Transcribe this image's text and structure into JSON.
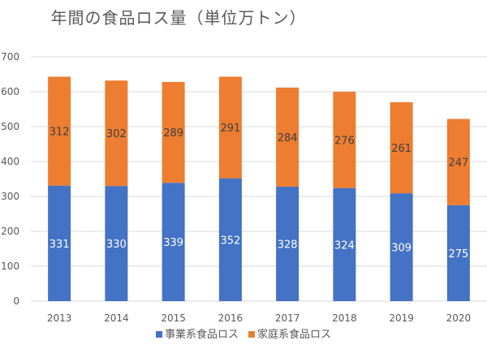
{
  "chart_data": {
    "type": "bar",
    "stacked": true,
    "title": "年間の食品ロス量（単位万トン）",
    "xlabel": "",
    "ylabel": "",
    "categories": [
      "2013",
      "2014",
      "2015",
      "2016",
      "2017",
      "2018",
      "2019",
      "2020"
    ],
    "series": [
      {
        "name": "事業系食品ロス",
        "color": "#4472C4",
        "label_color": "#ffffff",
        "values": [
          331,
          330,
          339,
          352,
          328,
          324,
          309,
          275
        ]
      },
      {
        "name": "家庭系食品ロス",
        "color": "#ED7D31",
        "label_color": "#404040",
        "values": [
          312,
          302,
          289,
          291,
          284,
          276,
          261,
          247
        ]
      }
    ],
    "ylim": [
      0,
      700
    ],
    "yticks": [
      0,
      100,
      200,
      300,
      400,
      500,
      600,
      700
    ],
    "grid": true,
    "legend": "bottom",
    "data_labels": true
  }
}
